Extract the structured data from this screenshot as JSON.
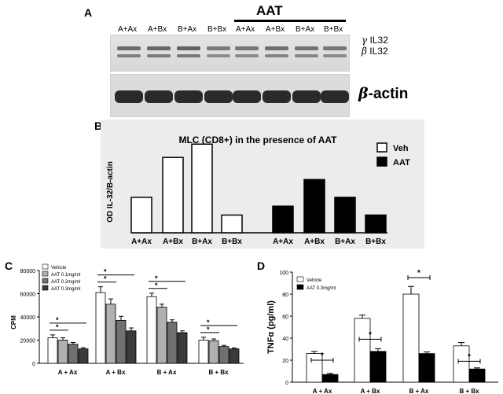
{
  "panel_a": {
    "label": "A",
    "lanes": [
      "A+Ax",
      "A+Bx",
      "B+Ax",
      "B+Bx",
      "A+Ax",
      "A+Bx",
      "B+Ax",
      "B+Bx"
    ],
    "treatment_label": "AAT",
    "band_labels": {
      "gamma_symbol": "γ",
      "gamma_text": "IL32",
      "beta_symbol": "β",
      "beta_text": "IL32",
      "actin_symbol": "β",
      "actin_text": "-actin"
    }
  },
  "chart_data": [
    {
      "panel": "B",
      "type": "bar",
      "title": "MLC (CD8+) in the presence of AAT",
      "ylabel": "OD IL-32/B-actin",
      "categories": [
        "A+Ax",
        "A+Bx",
        "B+Ax",
        "B+Bx",
        "A+Ax",
        "A+Bx",
        "B+Ax",
        "B+Bx"
      ],
      "series": [
        {
          "name": "Veh",
          "color": "#ffffff",
          "values": [
            8,
            17,
            20,
            4,
            null,
            null,
            null,
            null
          ]
        },
        {
          "name": "AAT",
          "color": "#000000",
          "values": [
            null,
            null,
            null,
            null,
            6,
            12,
            8,
            4
          ]
        }
      ],
      "ylim": [
        0,
        22
      ],
      "legend": "top-right"
    },
    {
      "panel": "C",
      "type": "bar",
      "ylabel": "CPM",
      "categories": [
        "A + Ax",
        "A + Bx",
        "B + Ax",
        "B + Bx"
      ],
      "yticks": [
        "0",
        "20000",
        "40000",
        "60000",
        "80000"
      ],
      "ylim": [
        0,
        80000
      ],
      "series": [
        {
          "name": "Vehicle",
          "color": "#ffffff",
          "values": [
            22000,
            61000,
            57500,
            20000
          ],
          "errors": [
            2500,
            5000,
            3000,
            2500
          ]
        },
        {
          "name": "AAT 0.1mg/ml",
          "color": "#b0b0b0",
          "values": [
            20000,
            51000,
            48500,
            19500
          ],
          "errors": [
            2000,
            4500,
            2500,
            1500
          ]
        },
        {
          "name": "AAT 0.2mg/ml",
          "color": "#707070",
          "values": [
            16500,
            37000,
            35500,
            14500
          ],
          "errors": [
            1500,
            3500,
            2000,
            1000
          ]
        },
        {
          "name": "AAT 0.3mg/ml",
          "color": "#3a3a3a",
          "values": [
            12500,
            28000,
            26500,
            12500
          ],
          "errors": [
            1000,
            2500,
            1500,
            800
          ]
        }
      ],
      "significance": "*",
      "legend": "top-left"
    },
    {
      "panel": "D",
      "type": "bar",
      "ylabel": "TNFα (pg/ml)",
      "categories": [
        "A + Ax",
        "A + Bx",
        "B + Ax",
        "B + Bx"
      ],
      "yticks": [
        "0",
        "20",
        "40",
        "60",
        "80",
        "100"
      ],
      "ylim": [
        0,
        100
      ],
      "series": [
        {
          "name": "Vehicle",
          "color": "#ffffff",
          "values": [
            26,
            58,
            80,
            33
          ],
          "errors": [
            2,
            3,
            7,
            3
          ]
        },
        {
          "name": "AAT 0.3mg/ml",
          "color": "#000000",
          "values": [
            7,
            28,
            26,
            12
          ],
          "errors": [
            1,
            2.5,
            1.5,
            1
          ]
        }
      ],
      "significance": "*",
      "legend": "top-left"
    }
  ],
  "labels": {
    "b": "B",
    "c": "C",
    "d": "D"
  }
}
